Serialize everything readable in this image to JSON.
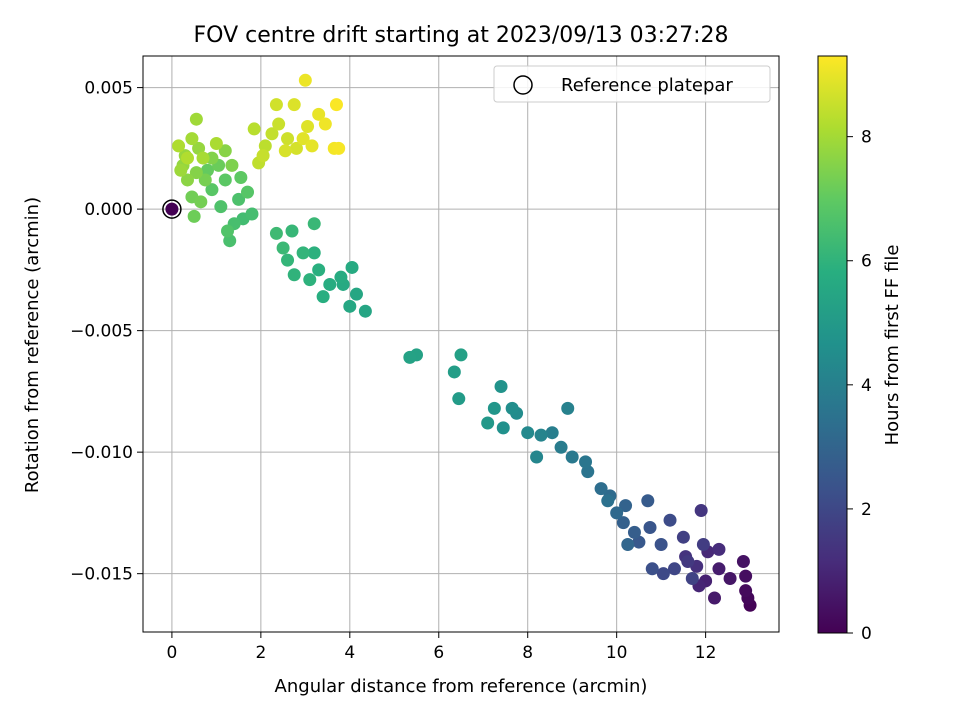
{
  "chart_data": {
    "type": "scatter",
    "title": "FOV centre drift starting at 2023/09/13 03:27:28",
    "xlabel": "Angular distance from reference (arcmin)",
    "ylabel": "Rotation from reference (arcmin)",
    "xlim": [
      -0.65,
      13.65
    ],
    "ylim": [
      -0.0174,
      0.0063
    ],
    "xticks": [
      0,
      2,
      4,
      6,
      8,
      10,
      12
    ],
    "xtick_labels": [
      "0",
      "2",
      "4",
      "6",
      "8",
      "10",
      "12"
    ],
    "yticks": [
      0.005,
      0.0,
      -0.005,
      -0.01,
      -0.015
    ],
    "ytick_labels": [
      "0.005",
      "0.000",
      "−0.005",
      "−0.010",
      "−0.015"
    ],
    "grid": true,
    "colormap": "viridis",
    "colorbar": {
      "label": "Hours from first FF file",
      "range": [
        0,
        9.3
      ],
      "ticks": [
        0,
        2,
        4,
        6,
        8
      ],
      "tick_labels": [
        "0",
        "2",
        "4",
        "6",
        "8"
      ]
    },
    "legend": {
      "position": "top-right",
      "entries": [
        "Reference platepar"
      ]
    },
    "reference_point": {
      "x": 0,
      "y": 0
    },
    "points": [
      [
        13.0,
        -0.0163,
        0.05
      ],
      [
        12.95,
        -0.016,
        0.15
      ],
      [
        12.9,
        -0.0157,
        0.25
      ],
      [
        12.9,
        -0.0151,
        0.35
      ],
      [
        12.85,
        -0.0145,
        0.45
      ],
      [
        12.55,
        -0.0152,
        0.55
      ],
      [
        12.2,
        -0.016,
        0.65
      ],
      [
        12.3,
        -0.0148,
        0.75
      ],
      [
        12.0,
        -0.0153,
        0.85
      ],
      [
        11.85,
        -0.0155,
        0.95
      ],
      [
        12.05,
        -0.0141,
        1.05
      ],
      [
        12.3,
        -0.014,
        1.15
      ],
      [
        11.8,
        -0.0147,
        1.25
      ],
      [
        11.55,
        -0.0143,
        1.35
      ],
      [
        11.9,
        -0.0124,
        1.45
      ],
      [
        11.6,
        -0.0145,
        1.55
      ],
      [
        11.95,
        -0.0138,
        1.65
      ],
      [
        11.5,
        -0.0135,
        1.75
      ],
      [
        11.7,
        -0.0152,
        1.85
      ],
      [
        11.3,
        -0.0148,
        1.95
      ],
      [
        11.05,
        -0.015,
        2.05
      ],
      [
        11.2,
        -0.0128,
        2.15
      ],
      [
        10.8,
        -0.0148,
        2.25
      ],
      [
        11.0,
        -0.0138,
        2.35
      ],
      [
        10.75,
        -0.0131,
        2.45
      ],
      [
        10.5,
        -0.0137,
        2.55
      ],
      [
        10.7,
        -0.012,
        2.65
      ],
      [
        10.4,
        -0.0133,
        2.75
      ],
      [
        10.15,
        -0.0129,
        2.85
      ],
      [
        10.2,
        -0.0122,
        2.95
      ],
      [
        10.25,
        -0.0138,
        3.05
      ],
      [
        10.0,
        -0.0125,
        3.15
      ],
      [
        9.85,
        -0.0118,
        3.25
      ],
      [
        9.65,
        -0.0115,
        3.35
      ],
      [
        9.8,
        -0.012,
        3.45
      ],
      [
        9.35,
        -0.0108,
        3.55
      ],
      [
        9.3,
        -0.0104,
        3.65
      ],
      [
        9.0,
        -0.0102,
        3.75
      ],
      [
        8.75,
        -0.0098,
        3.85
      ],
      [
        8.55,
        -0.0092,
        3.95
      ],
      [
        8.9,
        -0.0082,
        4.05
      ],
      [
        8.3,
        -0.0093,
        4.15
      ],
      [
        8.2,
        -0.0102,
        4.25
      ],
      [
        8.0,
        -0.0092,
        4.35
      ],
      [
        7.75,
        -0.0084,
        4.45
      ],
      [
        7.65,
        -0.0082,
        4.55
      ],
      [
        7.45,
        -0.009,
        4.65
      ],
      [
        7.4,
        -0.0073,
        4.75
      ],
      [
        7.25,
        -0.0082,
        4.85
      ],
      [
        7.1,
        -0.0088,
        4.95
      ],
      [
        6.45,
        -0.0078,
        5.05
      ],
      [
        6.35,
        -0.0067,
        5.15
      ],
      [
        6.5,
        -0.006,
        5.25
      ],
      [
        5.5,
        -0.006,
        5.3
      ],
      [
        5.35,
        -0.0061,
        5.35
      ],
      [
        4.35,
        -0.0042,
        5.45
      ],
      [
        4.15,
        -0.0035,
        5.5
      ],
      [
        4.0,
        -0.004,
        5.55
      ],
      [
        3.85,
        -0.0031,
        5.6
      ],
      [
        4.05,
        -0.0024,
        5.65
      ],
      [
        3.8,
        -0.0028,
        5.7
      ],
      [
        3.55,
        -0.0031,
        5.75
      ],
      [
        3.4,
        -0.0036,
        5.8
      ],
      [
        3.3,
        -0.0025,
        5.85
      ],
      [
        3.2,
        -0.0018,
        5.9
      ],
      [
        3.1,
        -0.0029,
        5.95
      ],
      [
        2.75,
        -0.0027,
        6.0
      ],
      [
        2.95,
        -0.0018,
        6.05
      ],
      [
        2.6,
        -0.0021,
        6.1
      ],
      [
        2.7,
        -0.0009,
        6.15
      ],
      [
        3.2,
        -0.0006,
        6.2
      ],
      [
        2.5,
        -0.0016,
        6.25
      ],
      [
        2.35,
        -0.001,
        6.3
      ],
      [
        1.6,
        -0.0004,
        6.4
      ],
      [
        1.8,
        -0.0002,
        6.45
      ],
      [
        1.4,
        -0.0006,
        6.5
      ],
      [
        1.3,
        -0.0013,
        6.55
      ],
      [
        1.5,
        0.0004,
        6.6
      ],
      [
        1.1,
        0.0001,
        6.65
      ],
      [
        1.25,
        -0.0009,
        6.7
      ],
      [
        1.7,
        0.0007,
        6.8
      ],
      [
        0.9,
        0.0008,
        6.85
      ],
      [
        1.2,
        0.0012,
        6.9
      ],
      [
        1.55,
        0.0013,
        6.95
      ],
      [
        0.8,
        0.0016,
        7.05
      ],
      [
        1.05,
        0.0018,
        7.15
      ],
      [
        0.5,
        -0.0003,
        7.2
      ],
      [
        0.45,
        0.0005,
        7.25
      ],
      [
        0.65,
        0.0003,
        7.3
      ],
      [
        0.75,
        0.0012,
        7.35
      ],
      [
        1.35,
        0.0018,
        7.45
      ],
      [
        0.9,
        0.0021,
        7.5
      ],
      [
        0.55,
        0.0015,
        7.55
      ],
      [
        1.2,
        0.0024,
        7.6
      ],
      [
        0.35,
        0.0012,
        7.65
      ],
      [
        0.25,
        0.0018,
        7.75
      ],
      [
        0.6,
        0.0025,
        7.8
      ],
      [
        0.3,
        0.0022,
        7.85
      ],
      [
        0.2,
        0.0016,
        7.9
      ],
      [
        0.55,
        0.0037,
        7.95
      ],
      [
        0.45,
        0.0029,
        8.0
      ],
      [
        0.7,
        0.0021,
        8.05
      ],
      [
        1.0,
        0.0027,
        8.1
      ],
      [
        0.15,
        0.0026,
        8.15
      ],
      [
        0.35,
        0.0021,
        8.2
      ],
      [
        1.85,
        0.0033,
        8.3
      ],
      [
        2.1,
        0.0026,
        8.35
      ],
      [
        1.95,
        0.0019,
        8.4
      ],
      [
        2.25,
        0.0031,
        8.45
      ],
      [
        2.05,
        0.0022,
        8.5
      ],
      [
        2.4,
        0.0035,
        8.55
      ],
      [
        2.6,
        0.0029,
        8.6
      ],
      [
        2.35,
        0.0043,
        8.65
      ],
      [
        2.8,
        0.0025,
        8.7
      ],
      [
        2.55,
        0.0024,
        8.75
      ],
      [
        2.75,
        0.0043,
        8.8
      ],
      [
        3.05,
        0.0034,
        8.85
      ],
      [
        2.95,
        0.0029,
        8.9
      ],
      [
        3.15,
        0.0026,
        8.95
      ],
      [
        3.3,
        0.0039,
        9.0
      ],
      [
        3.0,
        0.0053,
        9.05
      ],
      [
        3.45,
        0.0035,
        9.1
      ],
      [
        3.65,
        0.0025,
        9.15
      ],
      [
        3.75,
        0.0025,
        9.2
      ],
      [
        3.7,
        0.0043,
        9.25
      ]
    ]
  }
}
